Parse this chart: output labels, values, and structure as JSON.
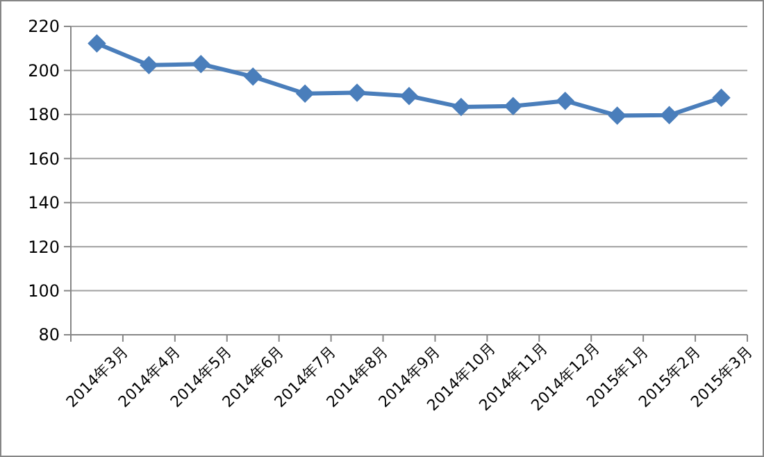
{
  "chart_data": {
    "type": "line",
    "categories": [
      "2014年3月",
      "2014年4月",
      "2014年5月",
      "2014年6月",
      "2014年7月",
      "2014年8月",
      "2014年9月",
      "2014年10月",
      "2014年11月",
      "2014年12月",
      "2015年1月",
      "2015年2月",
      "2015年3月"
    ],
    "series": [
      {
        "color": "#4a7ebb",
        "values": [
          212.3,
          202.4,
          202.9,
          197.2,
          189.5,
          189.9,
          188.4,
          183.4,
          183.8,
          186.2,
          179.5,
          179.7,
          187.6
        ]
      }
    ],
    "ylim": [
      80,
      220
    ],
    "yticks": [
      80,
      100,
      120,
      140,
      160,
      180,
      200,
      220
    ],
    "grid": "y",
    "marker": "diamond",
    "line_style": "solid"
  }
}
